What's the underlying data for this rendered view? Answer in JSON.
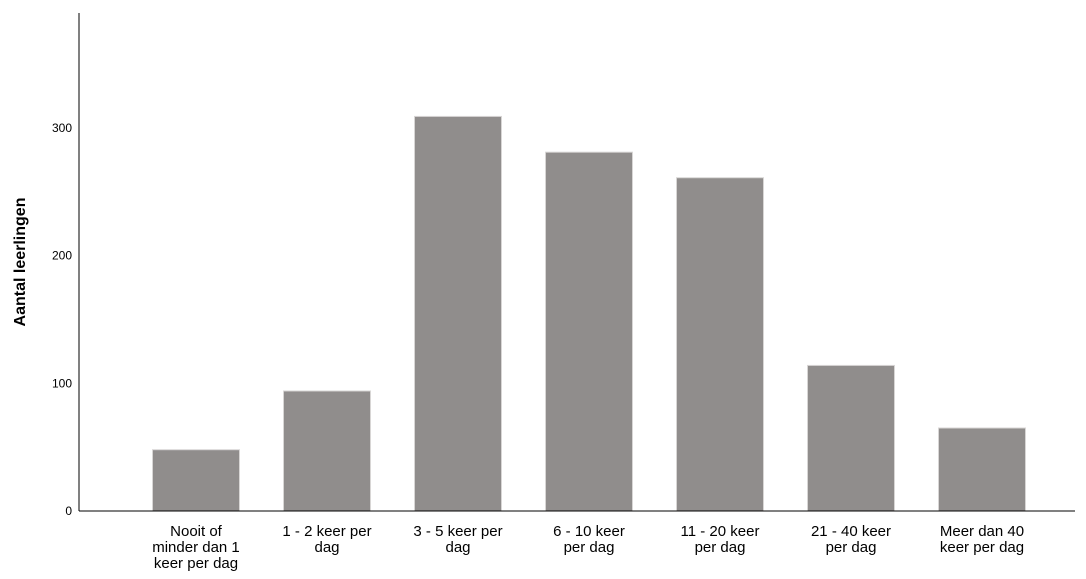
{
  "chart_data": {
    "type": "bar",
    "title": "",
    "xlabel": "",
    "ylabel": "Aantal leerlingen",
    "categories": [
      [
        "Nooit of",
        "minder dan 1",
        "keer per dag"
      ],
      [
        "1 - 2 keer per",
        "dag"
      ],
      [
        "3 - 5 keer per",
        "dag"
      ],
      [
        "6 - 10 keer",
        "per dag"
      ],
      [
        "11 - 20 keer",
        "per dag"
      ],
      [
        "21 - 40 keer",
        "per dag"
      ],
      [
        "Meer dan 40",
        "keer per dag"
      ]
    ],
    "values": [
      48,
      94,
      309,
      281,
      261,
      114,
      65
    ],
    "ylim": [
      0,
      390
    ],
    "yticks": [
      0,
      100,
      200,
      300
    ],
    "grid": false,
    "colors": {
      "bar": "#908d8c",
      "bar_edge": "#d8d6d5",
      "axis": "#000000"
    }
  }
}
